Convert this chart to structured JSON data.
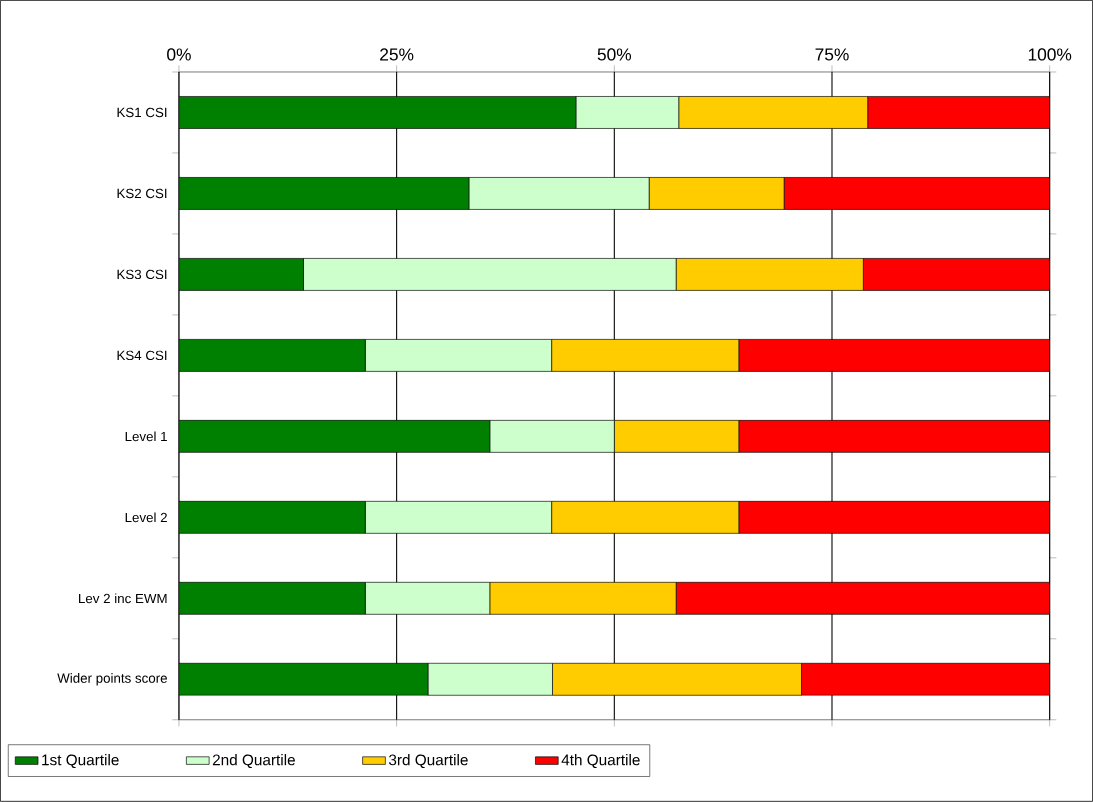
{
  "chart_data": {
    "type": "bar",
    "orientation": "horizontal",
    "stacked": true,
    "categories": [
      "KS1 CSI",
      "KS2 CSI",
      "KS3 CSI",
      "KS4 CSI",
      "Level 1",
      "Level 2",
      "Lev 2 inc EWM",
      "Wider points score"
    ],
    "series": [
      {
        "name": "1st Quartile",
        "color": "#008000",
        "values": [
          45.6,
          33.3,
          14.3,
          21.4,
          35.7,
          21.4,
          21.4,
          28.6
        ]
      },
      {
        "name": "2nd Quartile",
        "color": "#ccffcc",
        "values": [
          11.8,
          20.7,
          42.8,
          21.4,
          14.3,
          21.4,
          14.3,
          14.3
        ]
      },
      {
        "name": "3rd Quartile",
        "color": "#ffcc00",
        "values": [
          21.7,
          15.5,
          21.5,
          21.5,
          14.3,
          21.5,
          21.4,
          28.6
        ]
      },
      {
        "name": "4th Quartile",
        "color": "#ff0000",
        "values": [
          20.9,
          30.5,
          21.4,
          35.7,
          35.7,
          35.7,
          42.9,
          28.5
        ]
      }
    ],
    "xlim": [
      0,
      100
    ],
    "xticks": [
      {
        "value": 0,
        "label": "0%"
      },
      {
        "value": 25,
        "label": "25%"
      },
      {
        "value": 50,
        "label": "50%"
      },
      {
        "value": 75,
        "label": "75%"
      },
      {
        "value": 100,
        "label": "100%"
      }
    ],
    "grid": "x",
    "legend": "bottom"
  }
}
